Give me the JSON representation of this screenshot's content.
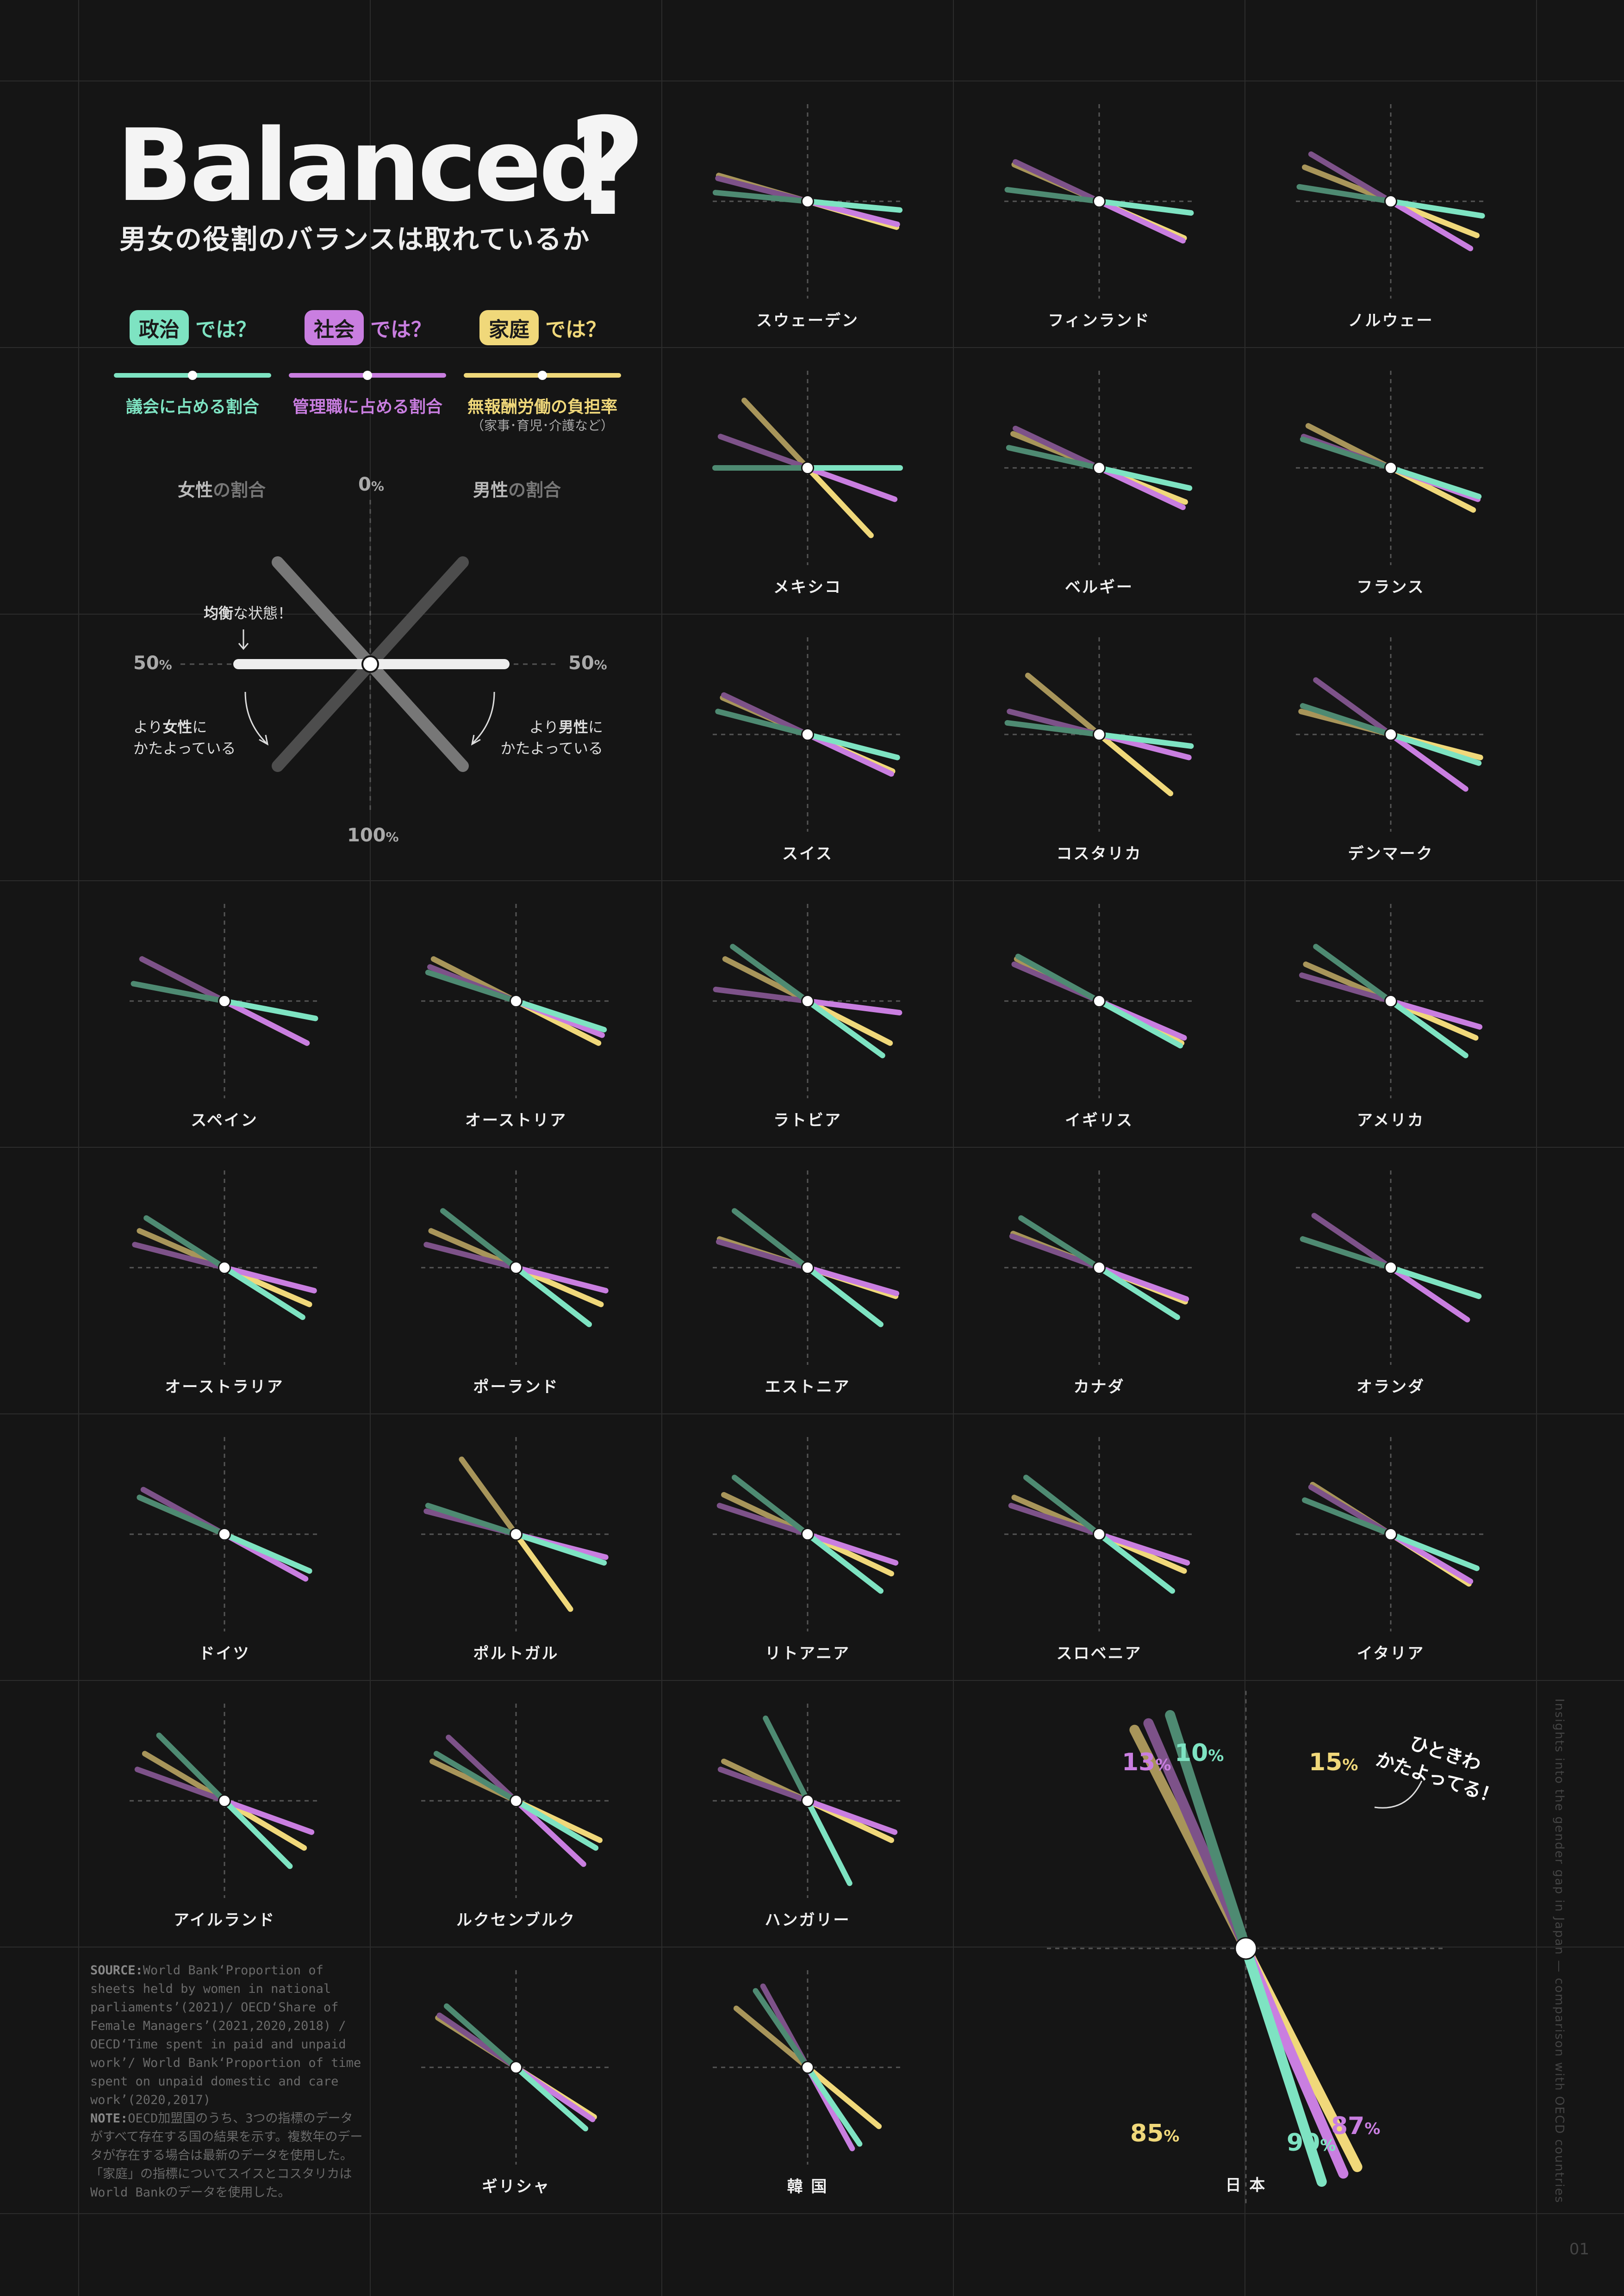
{
  "title": "Balanced",
  "title_mark": "?",
  "subtitle": "男女の役割のバランスは取れているか",
  "colors": {
    "politics": "#7ee3c2",
    "society": "#c97ee0",
    "home": "#f0d87a",
    "background": "#151515",
    "grid": "#2c2c2c"
  },
  "legend": [
    {
      "tag": "政治",
      "suffix": "では？",
      "caption": "議会に占める割合",
      "sub": ""
    },
    {
      "tag": "社会",
      "suffix": "では？",
      "caption": "管理職に占める割合",
      "sub": ""
    },
    {
      "tag": "家庭",
      "suffix": "では？",
      "caption": "無報酬労働の負担率",
      "sub": "（家事･育児･介護など）"
    }
  ],
  "guide": {
    "left_header_strong": "女性",
    "left_header_rest": "の割合",
    "right_header_strong": "男性",
    "right_header_rest": "の割合",
    "top_num": "0",
    "bottom_num": "100",
    "left_num": "50",
    "right_num": "50",
    "pct": "%",
    "balanced_strong": "均衡",
    "balanced_rest": "な状態！",
    "left_note_a": "より",
    "left_note_b": "女性",
    "left_note_c": "に",
    "left_note_2": "かたよっている",
    "right_note_a": "より",
    "right_note_b": "男性",
    "right_note_c": "に",
    "right_note_2": "かたよっている"
  },
  "countries": [
    {
      "name": "スウェーデン",
      "politics": 47,
      "society": 42,
      "home": 41
    },
    {
      "name": "フィンランド",
      "politics": 46,
      "society": 36,
      "home": 37
    },
    {
      "name": "ノルウェー",
      "politics": 45,
      "society": 33,
      "home": 38
    },
    {
      "name": "メキシコ",
      "politics": 50,
      "society": 39,
      "home": 24
    },
    {
      "name": "ベルギー",
      "politics": 43,
      "society": 36,
      "home": 38
    },
    {
      "name": "フランス",
      "politics": 40,
      "society": 39,
      "home": 35
    },
    {
      "name": "スイス",
      "politics": 42,
      "society": 36,
      "home": 37
    },
    {
      "name": "コスタリカ",
      "politics": 46,
      "society": 42,
      "home": 28
    },
    {
      "name": "デンマーク",
      "politics": 40,
      "society": 30,
      "home": 42
    },
    {
      "name": "スペイン",
      "politics": 44,
      "society": 35,
      "home": 35
    },
    {
      "name": "オーストリア",
      "politics": 40,
      "society": 38,
      "home": 35
    },
    {
      "name": "ラトビア",
      "politics": 30,
      "society": 46,
      "home": 35
    },
    {
      "name": "イギリス",
      "politics": 34,
      "society": 37,
      "home": 35
    },
    {
      "name": "アメリカ",
      "politics": 30,
      "society": 41,
      "home": 37
    },
    {
      "name": "オーストラリア",
      "politics": 32,
      "society": 42,
      "home": 37
    },
    {
      "name": "ポーランド",
      "politics": 29,
      "society": 42,
      "home": 37
    },
    {
      "name": "エストニア",
      "politics": 29,
      "society": 41,
      "home": 40
    },
    {
      "name": "カナダ",
      "politics": 32,
      "society": 39,
      "home": 38
    },
    {
      "name": "オランダ",
      "politics": 40,
      "society": 31,
      "home": 40
    },
    {
      "name": "ドイツ",
      "politics": 37,
      "society": 34,
      "home": 37
    },
    {
      "name": "ポルトガル",
      "politics": 40,
      "society": 42,
      "home": 20
    },
    {
      "name": "リトアニア",
      "politics": 29,
      "society": 40,
      "home": 36
    },
    {
      "name": "スロベニア",
      "politics": 29,
      "society": 40,
      "home": 37
    },
    {
      "name": "イタリア",
      "politics": 38,
      "society": 33,
      "home": 32
    },
    {
      "name": "アイルランド",
      "politics": 25,
      "society": 39,
      "home": 33
    },
    {
      "name": "ルクセンブルク",
      "politics": 33,
      "society": 26,
      "home": 36
    },
    {
      "name": "ハンガリー",
      "politics": 15,
      "society": 39,
      "home": 36
    },
    {
      "name": "ギリシャ",
      "politics": 27,
      "society": 31,
      "home": 32
    },
    {
      "name": "韓 国",
      "politics": 19,
      "society": 16,
      "home": 28
    },
    {
      "name": "日 本",
      "politics": 10,
      "society": 13,
      "home": 15
    }
  ],
  "japan_labels": {
    "society_top": "13",
    "politics_top": "10",
    "home_top": "15",
    "home_bottom": "85",
    "politics_bottom": "90",
    "society_bottom": "87",
    "pct": "%",
    "note_1": "ひときわ",
    "note_2": "かたよってる！"
  },
  "source_label": "SOURCE:",
  "source_text": "World Bank‘Proportion of sheets held by women in national parliaments’(2021)/ OECD‘Share of Female Managers’(2021,2020,2018) / OECD‘Time spent in paid and unpaid work’/ World Bank‘Proportion of time spent on unpaid domestic and care work’(2020,2017)",
  "note_label": "NOTE:",
  "note_text": "OECD加盟国のうち、3つの指標のデータがすべて存在する国の結果を示す。複数年のデータが存在する場合は最新のデータを使用した。「家庭」の指標についてスイスとコスタリカはWorld Bankのデータを使用した。",
  "side_text": "Insights into the gender gap in Japan — comparison with OECD countries",
  "page_number": "01"
}
